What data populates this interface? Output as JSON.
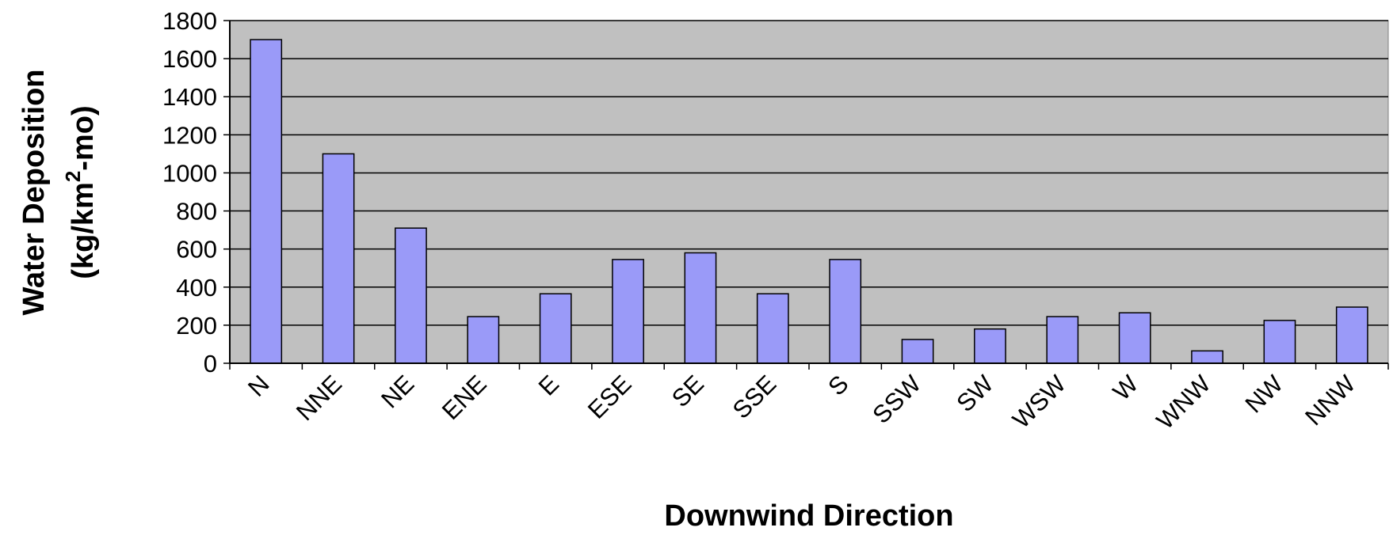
{
  "chart_data": {
    "type": "bar",
    "categories": [
      "N",
      "NNE",
      "NE",
      "ENE",
      "E",
      "ESE",
      "SE",
      "SSE",
      "S",
      "SSW",
      "SW",
      "WSW",
      "W",
      "WNW",
      "NW",
      "NNW"
    ],
    "values": [
      1700,
      1100,
      710,
      245,
      365,
      545,
      580,
      365,
      545,
      125,
      180,
      245,
      265,
      65,
      225,
      295
    ],
    "xlabel": "Downwind Direction",
    "ylabel": {
      "line1": "Water Deposition",
      "line2_prefix": "(kg/km",
      "line2_sup": "2",
      "line2_suffix": "-mo)"
    },
    "ylim": [
      0,
      1800
    ],
    "yticks": [
      "0",
      "200",
      "400",
      "600",
      "800",
      "1000",
      "1200",
      "1400",
      "1600",
      "1800"
    ],
    "grid": true,
    "legend": "none",
    "colors": {
      "bar": "#9a9af8",
      "plot_bg": "#c0c0c0",
      "gridline": "#000000"
    }
  }
}
